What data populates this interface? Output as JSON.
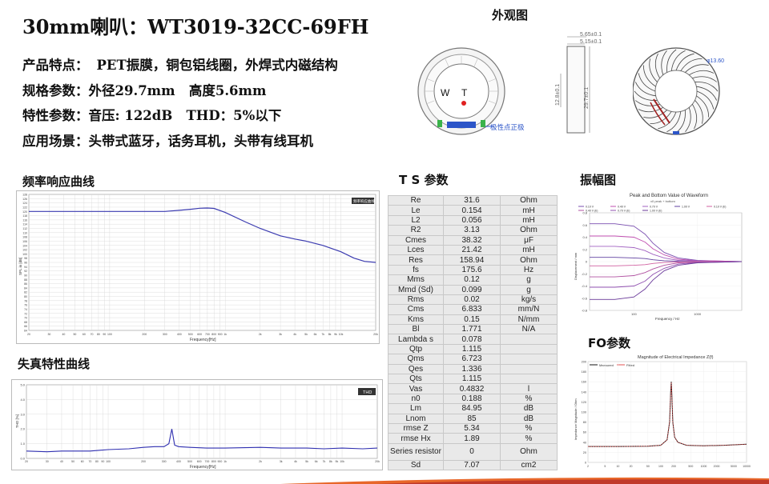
{
  "header": {
    "title": "30mm喇叭：WT3019-32CC-69FH",
    "features_label": "产品特点：",
    "features_value": "PET振膜，铜包铝线圈，外焊式内磁结构",
    "specs_label": "规格参数：",
    "specs_value": "外径29.7mm   高度5.6mm",
    "perf_label": "特性参数：",
    "perf_value": "音压: 122dB   THD：5%以下",
    "use_label": "应用场景：",
    "use_value": "头带式蓝牙，话务耳机，头带有线耳机"
  },
  "appearance": {
    "title": "外观图",
    "label_w": "W",
    "label_t": "T",
    "polarity_note": "极性点正极",
    "dim_565": "5.65±0.1",
    "dim_515": "5.15±0.1",
    "dim_128": "12.8±0.1",
    "dim_297": "29.7±0.1",
    "dim_136": "φ13.60"
  },
  "freq_response": {
    "title": "频率响应曲线",
    "x_label": "Frequency[Hz]",
    "y_label": "SPL in [dB]",
    "legend": "频率响应曲线",
    "y_ticks": [
      "128",
      "126",
      "124",
      "122",
      "120",
      "118",
      "116",
      "114",
      "112",
      "110",
      "108",
      "106",
      "104",
      "102",
      "100",
      "98",
      "96",
      "94",
      "92",
      "90",
      "88",
      "86",
      "84",
      "82",
      "80",
      "78",
      "76",
      "74",
      "72",
      "70",
      "68",
      "66",
      "64"
    ],
    "x_ticks": [
      "20",
      "30",
      "40",
      "50",
      "60",
      "70",
      "80",
      "90",
      "100",
      "200",
      "300",
      "400",
      "500",
      "600",
      "700",
      "800",
      "900",
      "1k",
      "2k",
      "3k",
      "4k",
      "5k",
      "6k",
      "7k",
      "8k",
      "9k",
      "10k",
      "20k"
    ]
  },
  "distortion": {
    "title": "失真特性曲线",
    "x_label": "Frequency[Hz]",
    "y_label": "THD [%]",
    "legend": "THD",
    "y_ticks": [
      "5.0",
      "4.0",
      "3.0",
      "2.0",
      "1.0",
      "0.0"
    ],
    "x_ticks": [
      "20",
      "30",
      "40",
      "50",
      "60",
      "70",
      "80",
      "90",
      "100",
      "200",
      "300",
      "400",
      "500",
      "600",
      "700",
      "800",
      "900",
      "1k",
      "2k",
      "3k",
      "4k",
      "5k",
      "6k",
      "7k",
      "8k",
      "9k",
      "10k",
      "20k"
    ]
  },
  "ts_params": {
    "title": "T S 参数",
    "rows": [
      {
        "name": "Re",
        "value": "31.6",
        "unit": "Ohm"
      },
      {
        "name": "Le",
        "value": "0.154",
        "unit": "mH"
      },
      {
        "name": "L2",
        "value": "0.056",
        "unit": "mH"
      },
      {
        "name": "R2",
        "value": "3.13",
        "unit": "Ohm"
      },
      {
        "name": "Cmes",
        "value": "38.32",
        "unit": "μF"
      },
      {
        "name": "Lces",
        "value": "21.42",
        "unit": "mH"
      },
      {
        "name": "Res",
        "value": "158.94",
        "unit": "Ohm"
      },
      {
        "name": "fs",
        "value": "175.6",
        "unit": "Hz"
      },
      {
        "name": "Mms",
        "value": "0.12",
        "unit": "g"
      },
      {
        "name": "Mmd (Sd)",
        "value": "0.099",
        "unit": "g"
      },
      {
        "name": "Rms",
        "value": "0.02",
        "unit": "kg/s"
      },
      {
        "name": "Cms",
        "value": "6.833",
        "unit": "mm/N"
      },
      {
        "name": "Kms",
        "value": "0.15",
        "unit": "N/mm"
      },
      {
        "name": "Bl",
        "value": "1.771",
        "unit": "N/A"
      },
      {
        "name": "Lambda s",
        "value": "0.078",
        "unit": ""
      },
      {
        "name": "Qtp",
        "value": "1.115",
        "unit": ""
      },
      {
        "name": "Qms",
        "value": "6.723",
        "unit": ""
      },
      {
        "name": "Qes",
        "value": "1.336",
        "unit": ""
      },
      {
        "name": "Qts",
        "value": "1.115",
        "unit": ""
      },
      {
        "name": "Vas",
        "value": "0.4832",
        "unit": "l"
      },
      {
        "name": "n0",
        "value": "0.188",
        "unit": "%"
      },
      {
        "name": "Lm",
        "value": "84.95",
        "unit": "dB"
      },
      {
        "name": "Lnom",
        "value": "85",
        "unit": "dB"
      },
      {
        "name": "rmse Z",
        "value": "5.34",
        "unit": "%"
      },
      {
        "name": "rmse Hx",
        "value": "1.89",
        "unit": "%"
      },
      {
        "name": "Series resistor",
        "value": "0",
        "unit": "Ohm"
      },
      {
        "name": "Sd",
        "value": "7.07",
        "unit": "cm2"
      }
    ]
  },
  "amplitude": {
    "title": "振幅图",
    "chart_title": "Peak and Bottom Value of Waveform",
    "chart_subtitle": "x0 peak + bottom",
    "legend": [
      "0.10 V",
      "0.40 V",
      "0.70 V",
      "1.00 V",
      "0.10 V (b)",
      "0.40 V (b)",
      "0.70 V (b)",
      "1.00 V (b)"
    ],
    "y_ticks": [
      "0.8",
      "0.6",
      "0.4",
      "0.2",
      "0",
      "-0.2",
      "-0.4",
      "-0.6",
      "-0.8"
    ],
    "x_ticks": [
      "100",
      "1000"
    ],
    "x_label": "Frequency / Hz",
    "y_label": "Displacement / mm"
  },
  "fo": {
    "title": "FO参数",
    "chart_title": "Magnitude of Electrical Impedance Z(f)",
    "legend_measured": "Measured",
    "legend_fitted": "Fitted",
    "y_ticks": [
      "200",
      "180",
      "160",
      "140",
      "120",
      "100",
      "80",
      "60",
      "40",
      "20",
      "0"
    ],
    "x_ticks": [
      "2",
      "5",
      "10",
      "20",
      "50",
      "100",
      "200",
      "500",
      "1000",
      "2000",
      "5000",
      "10000"
    ],
    "y_label": "Impedance Magnitude / Ohm"
  },
  "chart_data": [
    {
      "type": "line",
      "title": "频率响应曲线",
      "xlabel": "Frequency[Hz]",
      "ylabel": "SPL in [dB]",
      "x_scale": "log",
      "xlim": [
        20,
        20000
      ],
      "ylim": [
        64,
        128
      ],
      "series": [
        {
          "name": "频率响应曲线",
          "x": [
            20,
            50,
            100,
            200,
            300,
            400,
            500,
            600,
            700,
            800,
            1000,
            1500,
            2000,
            3000,
            4000,
            5000,
            7000,
            10000,
            13000,
            16000,
            20000
          ],
          "y": [
            120,
            120,
            120,
            120,
            120,
            120.5,
            121,
            121.5,
            121.6,
            121.4,
            119.5,
            115,
            112,
            108.5,
            107,
            106,
            104,
            101,
            98,
            96.5,
            96
          ]
        }
      ],
      "grid": true,
      "legend": "top-right"
    },
    {
      "type": "line",
      "title": "失真特性曲线",
      "xlabel": "Frequency[Hz]",
      "ylabel": "THD [%]",
      "x_scale": "log",
      "xlim": [
        20,
        20000
      ],
      "ylim": [
        0,
        5
      ],
      "series": [
        {
          "name": "THD",
          "x": [
            20,
            30,
            40,
            50,
            70,
            100,
            150,
            200,
            250,
            300,
            330,
            350,
            370,
            400,
            500,
            700,
            1000,
            2000,
            3000,
            5000,
            7000,
            10000,
            15000,
            20000
          ],
          "y": [
            0.5,
            0.45,
            0.5,
            0.5,
            0.5,
            0.6,
            0.65,
            0.75,
            0.8,
            0.8,
            1.0,
            2.0,
            0.9,
            0.8,
            0.75,
            0.7,
            0.7,
            0.75,
            0.7,
            0.7,
            0.65,
            0.7,
            0.65,
            0.7
          ]
        }
      ],
      "grid": true,
      "legend": "top-right"
    },
    {
      "type": "line",
      "title": "Peak and Bottom Value of Waveform",
      "xlabel": "Frequency / Hz",
      "ylabel": "Displacement / mm",
      "x_scale": "log",
      "xlim": [
        20,
        5000
      ],
      "ylim": [
        -0.8,
        0.8
      ],
      "series": [
        {
          "name": "1.00 V",
          "x": [
            20,
            50,
            100,
            150,
            200,
            300,
            500,
            1000,
            2000,
            5000
          ],
          "y": [
            0.62,
            0.62,
            0.58,
            0.45,
            0.3,
            0.15,
            0.06,
            0.02,
            0.01,
            0.0
          ]
        },
        {
          "name": "0.70 V",
          "x": [
            20,
            50,
            100,
            150,
            200,
            300,
            500,
            1000,
            2000,
            5000
          ],
          "y": [
            0.42,
            0.42,
            0.4,
            0.32,
            0.21,
            0.11,
            0.04,
            0.015,
            0.01,
            0.0
          ]
        },
        {
          "name": "0.40 V",
          "x": [
            20,
            50,
            100,
            150,
            200,
            300,
            500,
            1000,
            2000,
            5000
          ],
          "y": [
            0.25,
            0.25,
            0.23,
            0.18,
            0.12,
            0.06,
            0.02,
            0.01,
            0.0,
            0.0
          ]
        },
        {
          "name": "0.10 V",
          "x": [
            20,
            50,
            100,
            150,
            200,
            300,
            500,
            1000,
            2000,
            5000
          ],
          "y": [
            0.07,
            0.07,
            0.06,
            0.05,
            0.03,
            0.015,
            0.005,
            0.0,
            0.0,
            0.0
          ]
        },
        {
          "name": "0.10 V (b)",
          "x": [
            20,
            50,
            100,
            150,
            200,
            300,
            500,
            1000,
            2000,
            5000
          ],
          "y": [
            -0.07,
            -0.07,
            -0.06,
            -0.05,
            -0.03,
            -0.015,
            -0.005,
            0.0,
            0.0,
            0.0
          ]
        },
        {
          "name": "0.40 V (b)",
          "x": [
            20,
            50,
            100,
            150,
            200,
            300,
            500,
            1000,
            2000,
            5000
          ],
          "y": [
            -0.25,
            -0.25,
            -0.23,
            -0.18,
            -0.12,
            -0.06,
            -0.02,
            -0.01,
            0.0,
            0.0
          ]
        },
        {
          "name": "0.70 V (b)",
          "x": [
            20,
            50,
            100,
            150,
            200,
            300,
            500,
            1000,
            2000,
            5000
          ],
          "y": [
            -0.42,
            -0.42,
            -0.4,
            -0.32,
            -0.21,
            -0.11,
            -0.04,
            -0.015,
            -0.01,
            0.0
          ]
        },
        {
          "name": "1.00 V (b)",
          "x": [
            20,
            50,
            100,
            150,
            200,
            300,
            500,
            1000,
            2000,
            5000
          ],
          "y": [
            -0.62,
            -0.62,
            -0.58,
            -0.45,
            -0.3,
            -0.15,
            -0.06,
            -0.02,
            -0.01,
            0.0
          ]
        }
      ],
      "legend": "top"
    },
    {
      "type": "line",
      "title": "Magnitude of Electrical Impedance Z(f)",
      "ylabel": "Impedance Magnitude / Ohm",
      "x_scale": "log",
      "xlim": [
        2,
        10000
      ],
      "ylim": [
        0,
        200
      ],
      "series": [
        {
          "name": "Measured",
          "x": [
            2,
            10,
            50,
            100,
            140,
            160,
            170,
            175.6,
            180,
            190,
            210,
            250,
            400,
            1000,
            3000,
            10000
          ],
          "y": [
            31.6,
            31.6,
            32,
            34,
            45,
            80,
            140,
            160,
            140,
            80,
            50,
            40,
            34,
            33,
            34,
            36
          ]
        },
        {
          "name": "Fitted",
          "x": [
            2,
            10,
            50,
            100,
            140,
            160,
            170,
            175.6,
            180,
            190,
            210,
            250,
            400,
            1000,
            3000,
            10000
          ],
          "y": [
            31.6,
            31.6,
            32,
            34,
            45,
            80,
            140,
            159,
            140,
            80,
            50,
            40,
            34,
            33,
            34,
            36
          ]
        }
      ],
      "legend": "top-left"
    }
  ]
}
